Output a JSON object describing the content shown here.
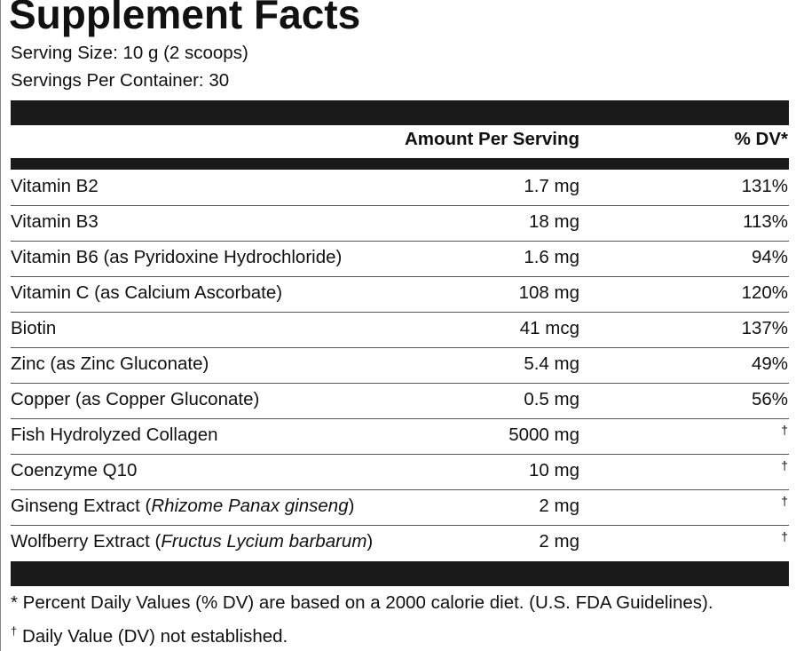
{
  "header": {
    "title": "Supplement Facts",
    "serving_size": "Serving Size: 10 g (2 scoops)",
    "servings_per_container": "Servings Per Container: 30"
  },
  "table": {
    "columns": [
      "Amount Per Serving",
      "% DV*"
    ],
    "rows": [
      {
        "name": "Vitamin B2",
        "amount": "1.7 mg",
        "dv": "131%"
      },
      {
        "name": "Vitamin B3",
        "amount": "18 mg",
        "dv": "113%"
      },
      {
        "name": "Vitamin B6 (as Pyridoxine Hydrochloride)",
        "amount": "1.6 mg",
        "dv": "94%"
      },
      {
        "name": "Vitamin C (as Calcium Ascorbate)",
        "amount": "108 mg",
        "dv": "120%"
      },
      {
        "name": "Biotin",
        "amount": "41 mcg",
        "dv": "137%"
      },
      {
        "name": "Zinc (as Zinc Gluconate)",
        "amount": "5.4 mg",
        "dv": "49%"
      },
      {
        "name": "Copper (as Copper Gluconate)",
        "amount": "0.5 mg",
        "dv": "56%"
      },
      {
        "name": "Fish Hydrolyzed Collagen",
        "amount": "5000 mg",
        "dv": "†",
        "dv_superscript": true
      },
      {
        "name": "Coenzyme Q10",
        "amount": "10 mg",
        "dv": "†",
        "dv_superscript": true
      },
      {
        "name": [
          {
            "text": "Ginseng Extract ("
          },
          {
            "text": "Rhizome Panax ginseng",
            "italic": true
          },
          {
            "text": ")"
          }
        ],
        "amount": "2 mg",
        "dv": "†",
        "dv_superscript": true
      },
      {
        "name": [
          {
            "text": "Wolfberry Extract ("
          },
          {
            "text": "Fructus Lycium barbarum",
            "italic": true
          },
          {
            "text": ")"
          }
        ],
        "amount": "2 mg",
        "dv": "†",
        "dv_superscript": true
      }
    ]
  },
  "footnotes": {
    "percent": "* Percent Daily Values (% DV) are based on a 2000 calorie diet. (U.S. FDA Guidelines).",
    "dagger_symbol": "†",
    "dagger_text": "Daily Value (DV) not established."
  }
}
